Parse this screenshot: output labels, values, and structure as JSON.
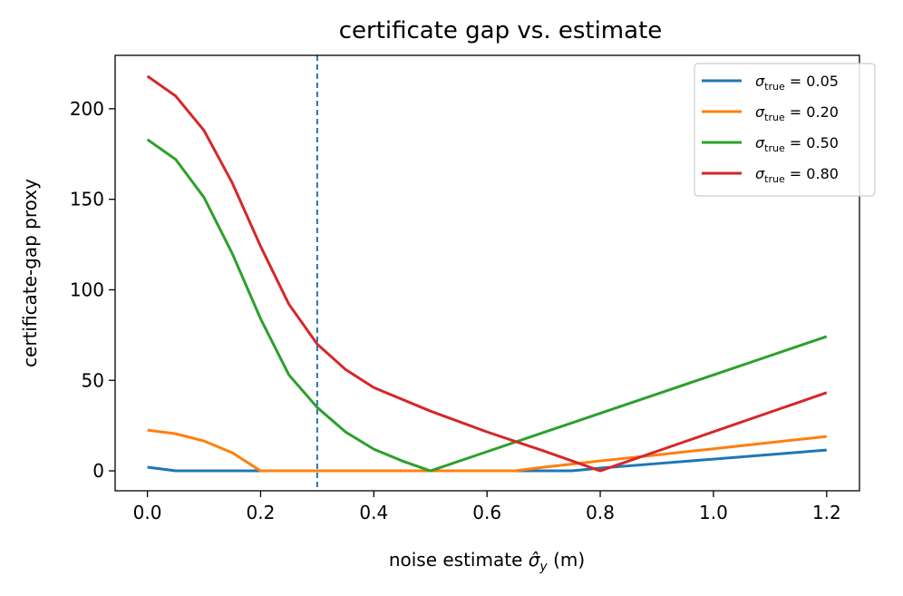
{
  "chart_data": {
    "type": "line",
    "title": "certificate gap vs. estimate",
    "xlabel": "noise estimate",
    "xlabel_symbol": "σ̂",
    "xlabel_subscript": "y",
    "xlabel_unit": "(m)",
    "ylabel": "certificate-gap proxy",
    "xlim": [
      -0.057,
      1.258
    ],
    "ylim": [
      -11,
      229.5
    ],
    "xticks": [
      0.0,
      0.2,
      0.4,
      0.6,
      0.8,
      1.0,
      1.2
    ],
    "xtick_labels": [
      "0.0",
      "0.2",
      "0.4",
      "0.6",
      "0.8",
      "1.0",
      "1.2"
    ],
    "yticks": [
      0,
      50,
      100,
      150,
      200
    ],
    "ytick_labels": [
      "0",
      "50",
      "100",
      "150",
      "200"
    ],
    "vline": {
      "x": 0.3,
      "style": "dashed",
      "color": "#1f77b4"
    },
    "grid": false,
    "legend_position": "top-right",
    "series": [
      {
        "name": "σ_true = 0.05",
        "legend_symbol": "σ",
        "legend_sub": "true",
        "legend_value": "= 0.05",
        "color": "#1f77b4",
        "x": [
          0.0,
          0.05,
          0.1,
          0.2,
          0.3,
          0.4,
          0.5,
          0.6,
          0.7,
          0.75,
          0.8,
          0.9,
          1.0,
          1.1,
          1.2
        ],
        "y": [
          2,
          0,
          0,
          0,
          0,
          0,
          0,
          0,
          0,
          0,
          1.5,
          4,
          6.5,
          9,
          11.5
        ]
      },
      {
        "name": "σ_true = 0.20",
        "legend_symbol": "σ",
        "legend_sub": "true",
        "legend_value": "= 0.20",
        "color": "#ff7f0e",
        "x": [
          0.0,
          0.05,
          0.1,
          0.15,
          0.2,
          0.3,
          0.4,
          0.5,
          0.6,
          0.65,
          0.7,
          0.8,
          0.9,
          1.0,
          1.1,
          1.2
        ],
        "y": [
          22.5,
          20.5,
          16.5,
          10,
          0,
          0,
          0,
          0,
          0,
          0,
          2,
          5.5,
          8.8,
          12.2,
          15.6,
          19
        ]
      },
      {
        "name": "σ_true = 0.50",
        "legend_symbol": "σ",
        "legend_sub": "true",
        "legend_value": "= 0.50",
        "color": "#2ca02c",
        "x": [
          0.0,
          0.05,
          0.1,
          0.15,
          0.2,
          0.25,
          0.3,
          0.35,
          0.4,
          0.45,
          0.5,
          0.6,
          0.7,
          0.8,
          0.9,
          1.0,
          1.1,
          1.2
        ],
        "y": [
          183,
          172,
          151,
          120,
          84,
          53,
          35,
          21.5,
          12,
          5.5,
          0,
          10.6,
          21.2,
          31.8,
          42.4,
          53,
          63.6,
          74.2
        ]
      },
      {
        "name": "σ_true = 0.80",
        "legend_symbol": "σ",
        "legend_sub": "true",
        "legend_value": "= 0.80",
        "color": "#d62728",
        "x": [
          0.0,
          0.05,
          0.1,
          0.15,
          0.2,
          0.25,
          0.3,
          0.35,
          0.4,
          0.5,
          0.6,
          0.7,
          0.8,
          0.9,
          1.0,
          1.1,
          1.2
        ],
        "y": [
          218,
          207,
          188,
          159,
          124,
          92,
          70,
          56,
          46,
          33,
          21.5,
          11,
          0,
          10.8,
          21.6,
          32.4,
          43.2
        ]
      }
    ]
  }
}
